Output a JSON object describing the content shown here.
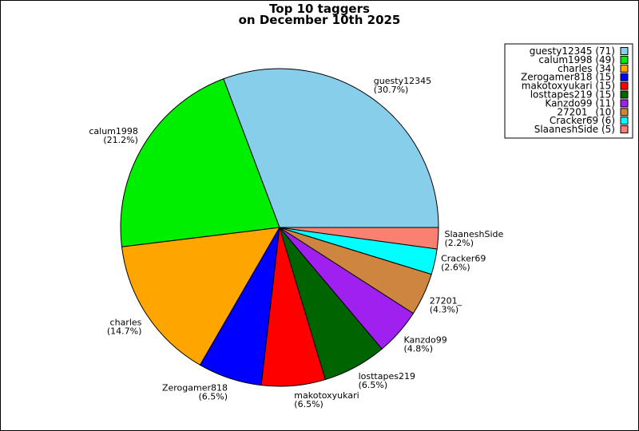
{
  "chart_data": {
    "type": "pie",
    "title": "Top 10 taggers",
    "subtitle": "on December 10th 2025",
    "legend_position": "top-right",
    "slices": [
      {
        "name": "guesty12345",
        "value": 71,
        "percent": "(30.7%)",
        "legend": "guesty12345 (71)",
        "color": "#87CEEB"
      },
      {
        "name": "calum1998",
        "value": 49,
        "percent": "(21.2%)",
        "legend": "calum1998 (49)",
        "color": "#00EE00"
      },
      {
        "name": "charles",
        "value": 34,
        "percent": "(14.7%)",
        "legend": "charles (34)",
        "color": "#FFA500"
      },
      {
        "name": "Zerogamer818",
        "value": 15,
        "percent": "(6.5%)",
        "legend": "Zerogamer818 (15)",
        "color": "#0000FF"
      },
      {
        "name": "makotoxyukari",
        "value": 15,
        "percent": "(6.5%)",
        "legend": "makotoxyukari (15)",
        "color": "#FF0000"
      },
      {
        "name": "losttapes219",
        "value": 15,
        "percent": "(6.5%)",
        "legend": "losttapes219 (15)",
        "color": "#006400"
      },
      {
        "name": "Kanzdo99",
        "value": 11,
        "percent": "(4.8%)",
        "legend": "Kanzdo99 (11)",
        "color": "#A020F0"
      },
      {
        "name": "27201_",
        "value": 10,
        "percent": "(4.3%)",
        "legend": "27201_ (10)",
        "color": "#CD853F"
      },
      {
        "name": "Cracker69",
        "value": 6,
        "percent": "(2.6%)",
        "legend": "Cracker69 (6)",
        "color": "#00FFFF"
      },
      {
        "name": "SlaaneshSide",
        "value": 5,
        "percent": "(2.2%)",
        "legend": "SlaaneshSide (5)",
        "color": "#FA8072"
      }
    ]
  }
}
